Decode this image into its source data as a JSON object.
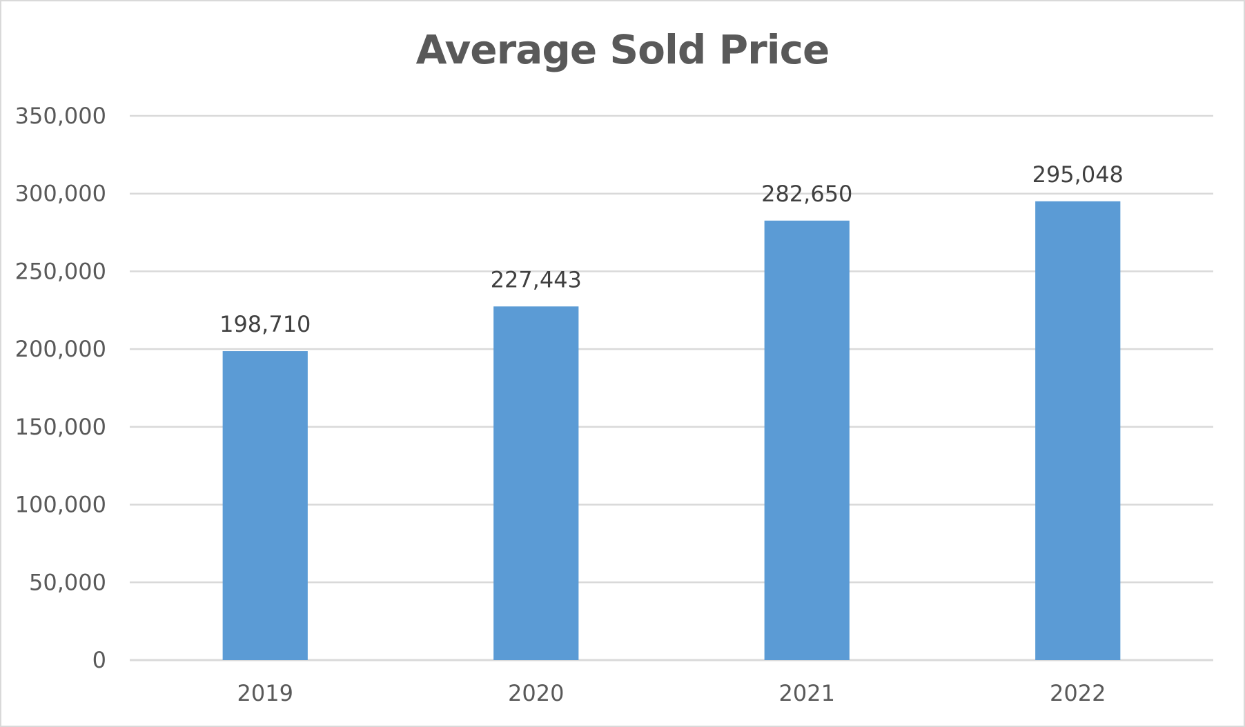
{
  "chart_data": {
    "type": "bar",
    "title": "Average Sold Price",
    "xlabel": "",
    "ylabel": "",
    "categories": [
      "2019",
      "2020",
      "2021",
      "2022"
    ],
    "series": [
      {
        "values": [
          198710,
          227443,
          282650,
          295048
        ],
        "data_labels": [
          "198,710",
          "227,443",
          "282,650",
          "295,048"
        ],
        "color": "#5b9bd5"
      }
    ],
    "ylim": [
      0,
      350000
    ],
    "yticks": [
      0,
      50000,
      100000,
      150000,
      200000,
      250000,
      300000,
      350000
    ],
    "ytick_labels": [
      "0",
      "50,000",
      "100,000",
      "150,000",
      "200,000",
      "250,000",
      "300,000",
      "350,000"
    ],
    "grid": true,
    "legend": "none",
    "gridline_color": "#d9d9d9",
    "text_color": "#595959"
  }
}
